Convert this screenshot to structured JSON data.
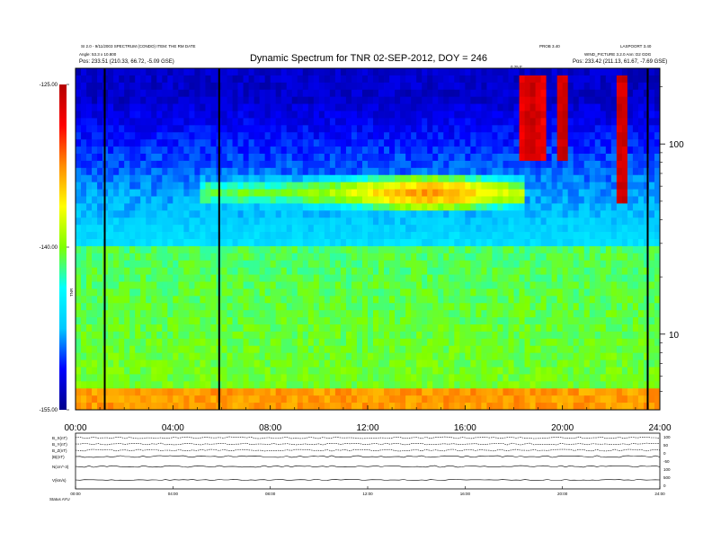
{
  "chart_data": {
    "type": "heatmap",
    "title": "Dynamic Spectrum for TNR 02-SEP-2012, DOY = 246",
    "header_left": [
      "SI 2.0 - 9/11/2003 SPECTRUM (CONDO) ITEM: THE RM DATE",
      "Angle:  53.3  x 10.800",
      "Pos:     233.51 (210.33, 66.72, -5.09 GSE)"
    ],
    "header_right": [
      "PROB 3.40",
      "WIND_PICTURE   3.2.0 Ann: D2 GDG",
      "Pos:     233.42 (211.13, 61.67, -7.69 GSE)"
    ],
    "top_right_corner": "LASPOORT 3.40",
    "top_marker_label": "0.25 E",
    "x_ticks": [
      "00:00",
      "04:00",
      "08:00",
      "12:00",
      "16:00",
      "20:00",
      "24:00"
    ],
    "xlim_hours": [
      0,
      24
    ],
    "y_right_ticks": [
      "100",
      "10"
    ],
    "y_right_values_khz": [
      100,
      10
    ],
    "ylim_khz": [
      4,
      250
    ],
    "y_scale": "log",
    "colorbar_ticks": [
      "-125.00",
      "-140.00",
      "-155.00"
    ],
    "colorbar_values": [
      -125,
      -140,
      -155
    ],
    "colorbar_label": "TNR",
    "colorbar_range": [
      -155,
      -125
    ],
    "colorbar_colors": [
      "#00008b",
      "#0000ff",
      "#00c8ff",
      "#00ffff",
      "#7fff00",
      "#ffff00",
      "#ff8c00",
      "#ff0000",
      "#b40000"
    ],
    "vertical_marker_hours": [
      1.2,
      5.9,
      23.5
    ],
    "features": [
      {
        "name": "continuum",
        "start_hour": 0,
        "end_hour": 24,
        "freq_khz": 30,
        "level_db": -140
      },
      {
        "name": "band",
        "start_hour": 5,
        "end_hour": 18.5,
        "freq_khz": 55,
        "level_db": -133
      },
      {
        "name": "burst",
        "start_hour": 18.2,
        "end_hour": 19.3,
        "freq_min_khz": 80,
        "freq_max_khz": 230,
        "level_db": -126
      },
      {
        "name": "burst",
        "start_hour": 19.8,
        "end_hour": 20.3,
        "freq_min_khz": 80,
        "freq_max_khz": 230,
        "level_db": -126
      },
      {
        "name": "burst",
        "start_hour": 22.2,
        "end_hour": 22.7,
        "freq_min_khz": 50,
        "freq_max_khz": 230,
        "level_db": -126
      }
    ],
    "bottom_panel": {
      "row_labels": [
        "B_X(nT)",
        "B_Y(nT)",
        "B_Z(nT)",
        "|B|(nT)",
        "N(cm^-3)",
        "V(km/s)"
      ],
      "right_ticks": [
        "100",
        "50",
        "0",
        "-50",
        "100",
        "500",
        "0"
      ],
      "x_ticks": [
        "00:00",
        "04:00",
        "08:00",
        "12:00",
        "16:00",
        "20:00",
        "24:00"
      ],
      "footer": "Status    AYU"
    }
  }
}
